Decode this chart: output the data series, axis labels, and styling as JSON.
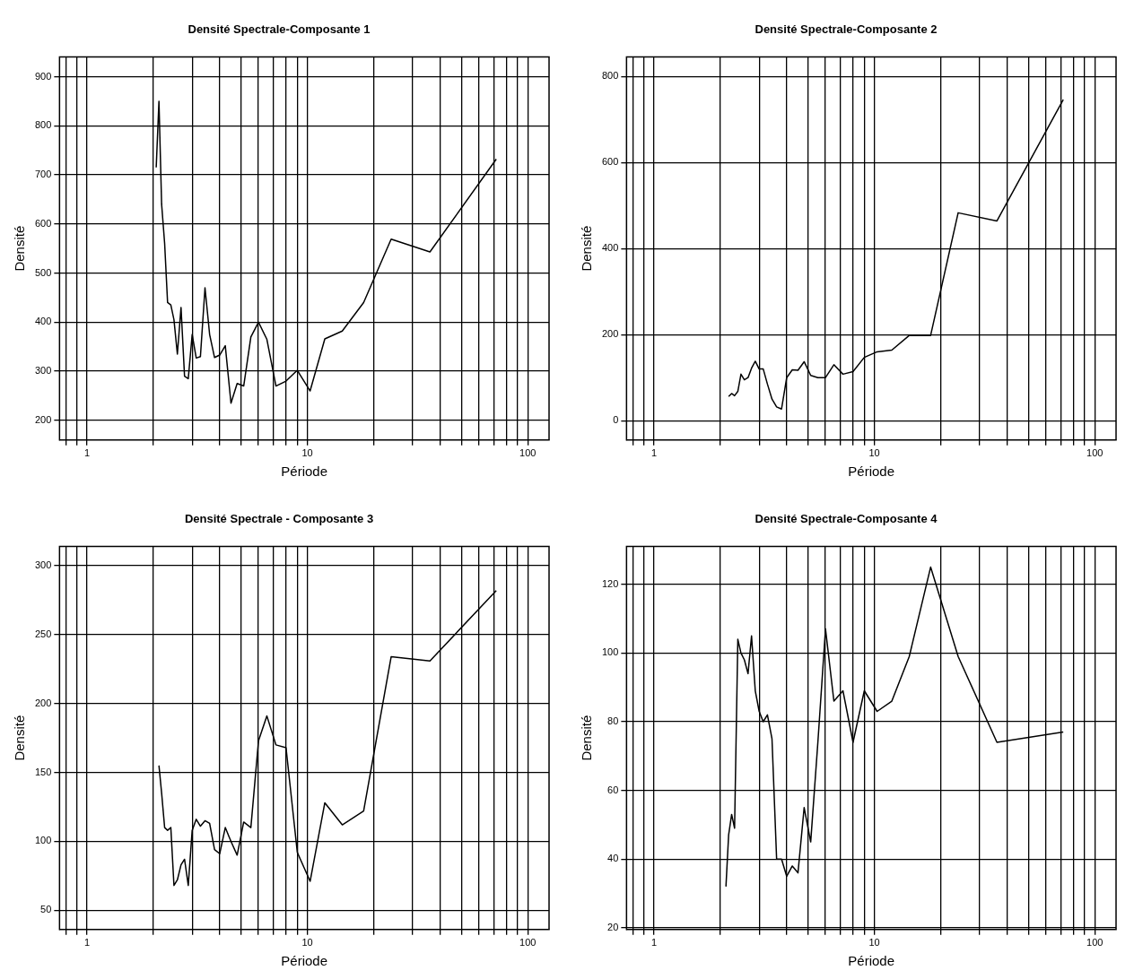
{
  "chart_data": [
    {
      "type": "line",
      "title": "Densité Spectrale-Composante 1",
      "xlabel": "Période",
      "ylabel": "Densité",
      "log": "x",
      "grid": true,
      "marker": "none",
      "line_style": "solid",
      "xlim": [
        0.75,
        125
      ],
      "ylim": [
        160,
        940
      ],
      "xticks": [
        {
          "value": 0.8,
          "label": null
        },
        {
          "value": 0.9,
          "label": null
        },
        1,
        {
          "value": 2,
          "label": null
        },
        {
          "value": 3,
          "label": null
        },
        {
          "value": 4,
          "label": null
        },
        {
          "value": 5,
          "label": null
        },
        {
          "value": 6,
          "label": null
        },
        {
          "value": 7,
          "label": null
        },
        {
          "value": 8,
          "label": null
        },
        {
          "value": 9,
          "label": null
        },
        10,
        {
          "value": 20,
          "label": null
        },
        {
          "value": 30,
          "label": null
        },
        {
          "value": 40,
          "label": null
        },
        {
          "value": 50,
          "label": null
        },
        {
          "value": 60,
          "label": null
        },
        {
          "value": 70,
          "label": null
        },
        {
          "value": 80,
          "label": null
        },
        {
          "value": 90,
          "label": null
        },
        100
      ],
      "yticks": [
        200,
        300,
        400,
        500,
        600,
        700,
        800,
        900
      ],
      "x": [
        2.06,
        2.12,
        2.18,
        2.25,
        2.32,
        2.4,
        2.48,
        2.57,
        2.67,
        2.77,
        2.88,
        3,
        3.13,
        3.27,
        3.43,
        3.6,
        3.79,
        4,
        4.24,
        4.5,
        4.8,
        5.14,
        5.54,
        6,
        6.55,
        7.2,
        8,
        9,
        10.29,
        12,
        14.4,
        18,
        24,
        36,
        72
      ],
      "series": [
        {
          "color": "#000000",
          "values": [
            715,
            850,
            640,
            560,
            440,
            435,
            405,
            335,
            430,
            290,
            285,
            375,
            327,
            330,
            470,
            375,
            328,
            333,
            352,
            235,
            275,
            270,
            370,
            400,
            365,
            270,
            280,
            302,
            260,
            366,
            382,
            440,
            569,
            543,
            732
          ]
        }
      ]
    },
    {
      "type": "line",
      "title": "Densité Spectrale-Composante 2",
      "xlabel": "Période",
      "ylabel": "Densité",
      "log": "x",
      "grid": true,
      "marker": "none",
      "line_style": "solid",
      "xlim": [
        0.75,
        125
      ],
      "ylim": [
        -45,
        845
      ],
      "xticks": [
        {
          "value": 0.8,
          "label": null
        },
        {
          "value": 0.9,
          "label": null
        },
        1,
        {
          "value": 2,
          "label": null
        },
        {
          "value": 3,
          "label": null
        },
        {
          "value": 4,
          "label": null
        },
        {
          "value": 5,
          "label": null
        },
        {
          "value": 6,
          "label": null
        },
        {
          "value": 7,
          "label": null
        },
        {
          "value": 8,
          "label": null
        },
        {
          "value": 9,
          "label": null
        },
        10,
        {
          "value": 20,
          "label": null
        },
        {
          "value": 30,
          "label": null
        },
        {
          "value": 40,
          "label": null
        },
        {
          "value": 50,
          "label": null
        },
        {
          "value": 60,
          "label": null
        },
        {
          "value": 70,
          "label": null
        },
        {
          "value": 80,
          "label": null
        },
        {
          "value": 90,
          "label": null
        },
        100
      ],
      "yticks": [
        0,
        200,
        400,
        600,
        800
      ],
      "x": [
        2.18,
        2.25,
        2.32,
        2.4,
        2.48,
        2.57,
        2.67,
        2.77,
        2.88,
        3,
        3.13,
        3.27,
        3.43,
        3.6,
        3.79,
        4,
        4.24,
        4.5,
        4.8,
        5.14,
        5.54,
        6,
        6.55,
        7.2,
        8,
        9,
        10.29,
        12,
        14.4,
        18,
        24,
        36,
        72
      ],
      "series": [
        {
          "color": "#000000",
          "values": [
            56,
            63,
            58,
            68,
            108,
            95,
            100,
            122,
            138,
            120,
            120,
            85,
            50,
            32,
            27,
            100,
            118,
            117,
            137,
            105,
            100,
            100,
            130,
            108,
            114,
            147,
            160,
            164,
            198,
            198,
            483,
            464,
            746
          ]
        }
      ]
    },
    {
      "type": "line",
      "title": "Densité Spectrale - Composante 3",
      "xlabel": "Période",
      "ylabel": "Densité",
      "log": "x",
      "grid": true,
      "marker": "none",
      "line_style": "solid",
      "xlim": [
        0.75,
        125
      ],
      "ylim": [
        36,
        314
      ],
      "xticks": [
        {
          "value": 0.8,
          "label": null
        },
        {
          "value": 0.9,
          "label": null
        },
        1,
        {
          "value": 2,
          "label": null
        },
        {
          "value": 3,
          "label": null
        },
        {
          "value": 4,
          "label": null
        },
        {
          "value": 5,
          "label": null
        },
        {
          "value": 6,
          "label": null
        },
        {
          "value": 7,
          "label": null
        },
        {
          "value": 8,
          "label": null
        },
        {
          "value": 9,
          "label": null
        },
        10,
        {
          "value": 20,
          "label": null
        },
        {
          "value": 30,
          "label": null
        },
        {
          "value": 40,
          "label": null
        },
        {
          "value": 50,
          "label": null
        },
        {
          "value": 60,
          "label": null
        },
        {
          "value": 70,
          "label": null
        },
        {
          "value": 80,
          "label": null
        },
        {
          "value": 90,
          "label": null
        },
        100
      ],
      "yticks": [
        50,
        100,
        150,
        200,
        250,
        300
      ],
      "x": [
        2.12,
        2.18,
        2.25,
        2.32,
        2.4,
        2.48,
        2.57,
        2.67,
        2.77,
        2.88,
        3,
        3.13,
        3.27,
        3.43,
        3.6,
        3.79,
        4,
        4.24,
        4.5,
        4.8,
        5.14,
        5.54,
        6,
        6.55,
        7.2,
        8,
        9,
        10.29,
        12,
        14.4,
        18,
        24,
        36,
        72
      ],
      "series": [
        {
          "color": "#000000",
          "values": [
            155,
            135,
            110,
            108,
            110,
            68,
            72,
            83,
            87,
            68,
            108,
            116,
            111,
            115,
            113,
            94,
            91,
            110,
            100,
            90,
            114,
            110,
            173,
            191,
            170,
            168,
            92,
            71,
            128,
            112,
            122,
            234,
            231,
            282
          ]
        }
      ]
    },
    {
      "type": "line",
      "title": "Densité Spectrale-Composante 4",
      "xlabel": "Période",
      "ylabel": "Densité",
      "log": "x",
      "grid": true,
      "marker": "none",
      "line_style": "solid",
      "xlim": [
        0.75,
        125
      ],
      "ylim": [
        19.5,
        131
      ],
      "xticks": [
        {
          "value": 0.8,
          "label": null
        },
        {
          "value": 0.9,
          "label": null
        },
        1,
        {
          "value": 2,
          "label": null
        },
        {
          "value": 3,
          "label": null
        },
        {
          "value": 4,
          "label": null
        },
        {
          "value": 5,
          "label": null
        },
        {
          "value": 6,
          "label": null
        },
        {
          "value": 7,
          "label": null
        },
        {
          "value": 8,
          "label": null
        },
        {
          "value": 9,
          "label": null
        },
        10,
        {
          "value": 20,
          "label": null
        },
        {
          "value": 30,
          "label": null
        },
        {
          "value": 40,
          "label": null
        },
        {
          "value": 50,
          "label": null
        },
        {
          "value": 60,
          "label": null
        },
        {
          "value": 70,
          "label": null
        },
        {
          "value": 80,
          "label": null
        },
        {
          "value": 90,
          "label": null
        },
        100
      ],
      "yticks": [
        20,
        40,
        60,
        80,
        100,
        120
      ],
      "x": [
        2.12,
        2.18,
        2.25,
        2.32,
        2.4,
        2.48,
        2.57,
        2.67,
        2.77,
        2.88,
        3,
        3.13,
        3.27,
        3.43,
        3.6,
        3.79,
        4,
        4.24,
        4.5,
        4.8,
        5.14,
        5.54,
        6,
        6.55,
        7.2,
        8,
        9,
        10.29,
        12,
        14.4,
        18,
        24,
        36,
        72
      ],
      "series": [
        {
          "color": "#000000",
          "values": [
            32,
            47,
            53,
            49,
            104,
            100,
            98,
            94,
            105,
            89,
            83,
            80,
            82,
            75,
            40,
            40,
            35,
            38,
            36,
            55,
            45,
            74,
            107,
            86,
            89,
            74,
            89,
            83,
            86,
            99,
            125,
            99,
            74,
            77
          ]
        }
      ]
    }
  ]
}
